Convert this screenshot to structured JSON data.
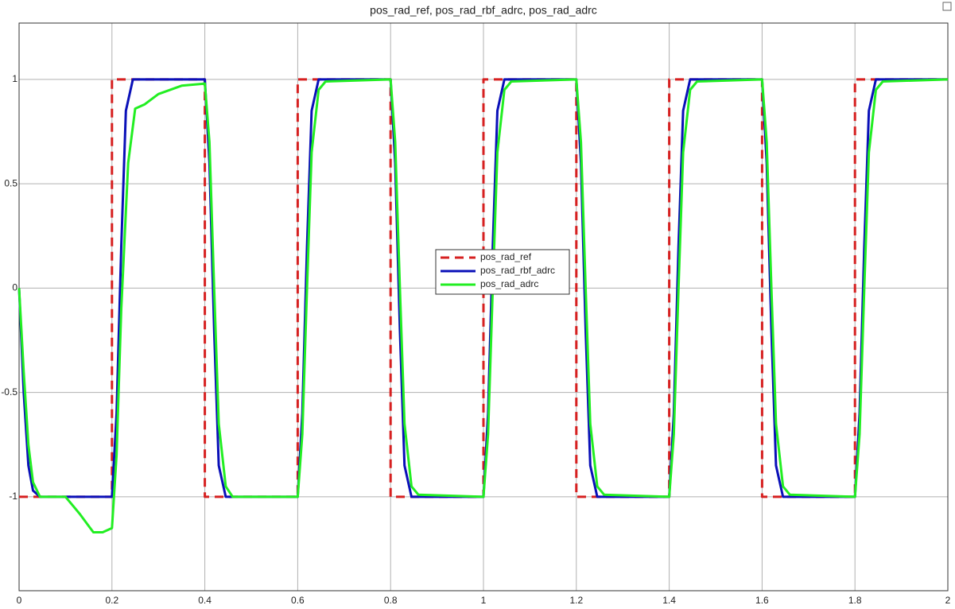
{
  "chart_data": {
    "type": "line",
    "title": "pos_rad_ref, pos_rad_rbf_adrc, pos_rad_adrc",
    "xlim": [
      0,
      2
    ],
    "ylim": [
      -1.45,
      1.27
    ],
    "xticks": [
      0,
      0.2,
      0.4,
      0.6,
      0.8,
      1,
      1.2,
      1.4,
      1.6,
      1.8,
      2
    ],
    "yticks": [
      -1,
      -0.5,
      0,
      0.5,
      1
    ],
    "grid": true,
    "legend": "center",
    "series": [
      {
        "name": "pos_rad_ref",
        "color": "#d62020",
        "style": "dashed",
        "x": [
          0,
          0.2,
          0.2,
          0.4,
          0.4,
          0.6,
          0.6,
          0.8,
          0.8,
          1,
          1,
          1.2,
          1.2,
          1.4,
          1.4,
          1.6,
          1.6,
          1.8,
          1.8,
          2
        ],
        "values": [
          -1,
          -1,
          1,
          1,
          -1,
          -1,
          1,
          1,
          -1,
          -1,
          1,
          1,
          -1,
          -1,
          1,
          1,
          -1,
          -1,
          1,
          1
        ]
      },
      {
        "name": "pos_rad_rbf_adrc",
        "color": "#0a10b8",
        "style": "solid",
        "x": [
          0,
          0.01,
          0.02,
          0.03,
          0.045,
          0.2,
          0.21,
          0.22,
          0.23,
          0.245,
          0.4,
          0.41,
          0.42,
          0.43,
          0.445,
          0.6,
          0.61,
          0.62,
          0.63,
          0.645,
          0.8,
          0.81,
          0.82,
          0.83,
          0.845,
          1.0,
          1.01,
          1.02,
          1.03,
          1.045,
          1.2,
          1.21,
          1.22,
          1.23,
          1.245,
          1.4,
          1.41,
          1.42,
          1.43,
          1.445,
          1.6,
          1.61,
          1.62,
          1.63,
          1.645,
          1.8,
          1.81,
          1.82,
          1.83,
          1.845,
          2
        ],
        "values": [
          0,
          -0.5,
          -0.85,
          -0.97,
          -1,
          -1,
          -0.6,
          0.2,
          0.85,
          1,
          1,
          0.6,
          -0.2,
          -0.85,
          -1,
          -1,
          -0.6,
          0.2,
          0.85,
          1,
          1,
          0.6,
          -0.2,
          -0.85,
          -1,
          -1,
          -0.6,
          0.2,
          0.85,
          1,
          1,
          0.6,
          -0.2,
          -0.85,
          -1,
          -1,
          -0.6,
          0.2,
          0.85,
          1,
          1,
          0.6,
          -0.2,
          -0.85,
          -1,
          -1,
          -0.6,
          0.2,
          0.85,
          1,
          1
        ]
      },
      {
        "name": "pos_rad_adrc",
        "color": "#22ee22",
        "style": "solid",
        "x": [
          0,
          0.01,
          0.02,
          0.03,
          0.045,
          0.1,
          0.13,
          0.16,
          0.18,
          0.2,
          0.21,
          0.22,
          0.235,
          0.25,
          0.27,
          0.3,
          0.35,
          0.4,
          0.41,
          0.42,
          0.43,
          0.445,
          0.46,
          0.6,
          0.61,
          0.62,
          0.63,
          0.645,
          0.66,
          0.8,
          0.81,
          0.82,
          0.83,
          0.845,
          0.86,
          1.0,
          1.01,
          1.02,
          1.03,
          1.045,
          1.06,
          1.2,
          1.21,
          1.22,
          1.23,
          1.245,
          1.26,
          1.4,
          1.41,
          1.42,
          1.43,
          1.445,
          1.46,
          1.6,
          1.61,
          1.62,
          1.63,
          1.645,
          1.66,
          1.8,
          1.81,
          1.82,
          1.83,
          1.845,
          1.86,
          2
        ],
        "values": [
          0,
          -0.4,
          -0.75,
          -0.93,
          -1,
          -1,
          -1.08,
          -1.17,
          -1.17,
          -1.15,
          -0.8,
          -0.1,
          0.6,
          0.86,
          0.88,
          0.93,
          0.97,
          0.98,
          0.7,
          0,
          -0.65,
          -0.95,
          -1,
          -1,
          -0.7,
          0,
          0.65,
          0.95,
          0.99,
          1,
          0.7,
          0,
          -0.65,
          -0.95,
          -0.99,
          -1,
          -0.7,
          0,
          0.65,
          0.95,
          0.99,
          1,
          0.7,
          0,
          -0.65,
          -0.95,
          -0.99,
          -1,
          -0.7,
          0,
          0.65,
          0.95,
          0.99,
          1,
          0.7,
          0,
          -0.65,
          -0.95,
          -0.99,
          -1,
          -0.7,
          0,
          0.65,
          0.95,
          0.99,
          1
        ]
      }
    ]
  }
}
